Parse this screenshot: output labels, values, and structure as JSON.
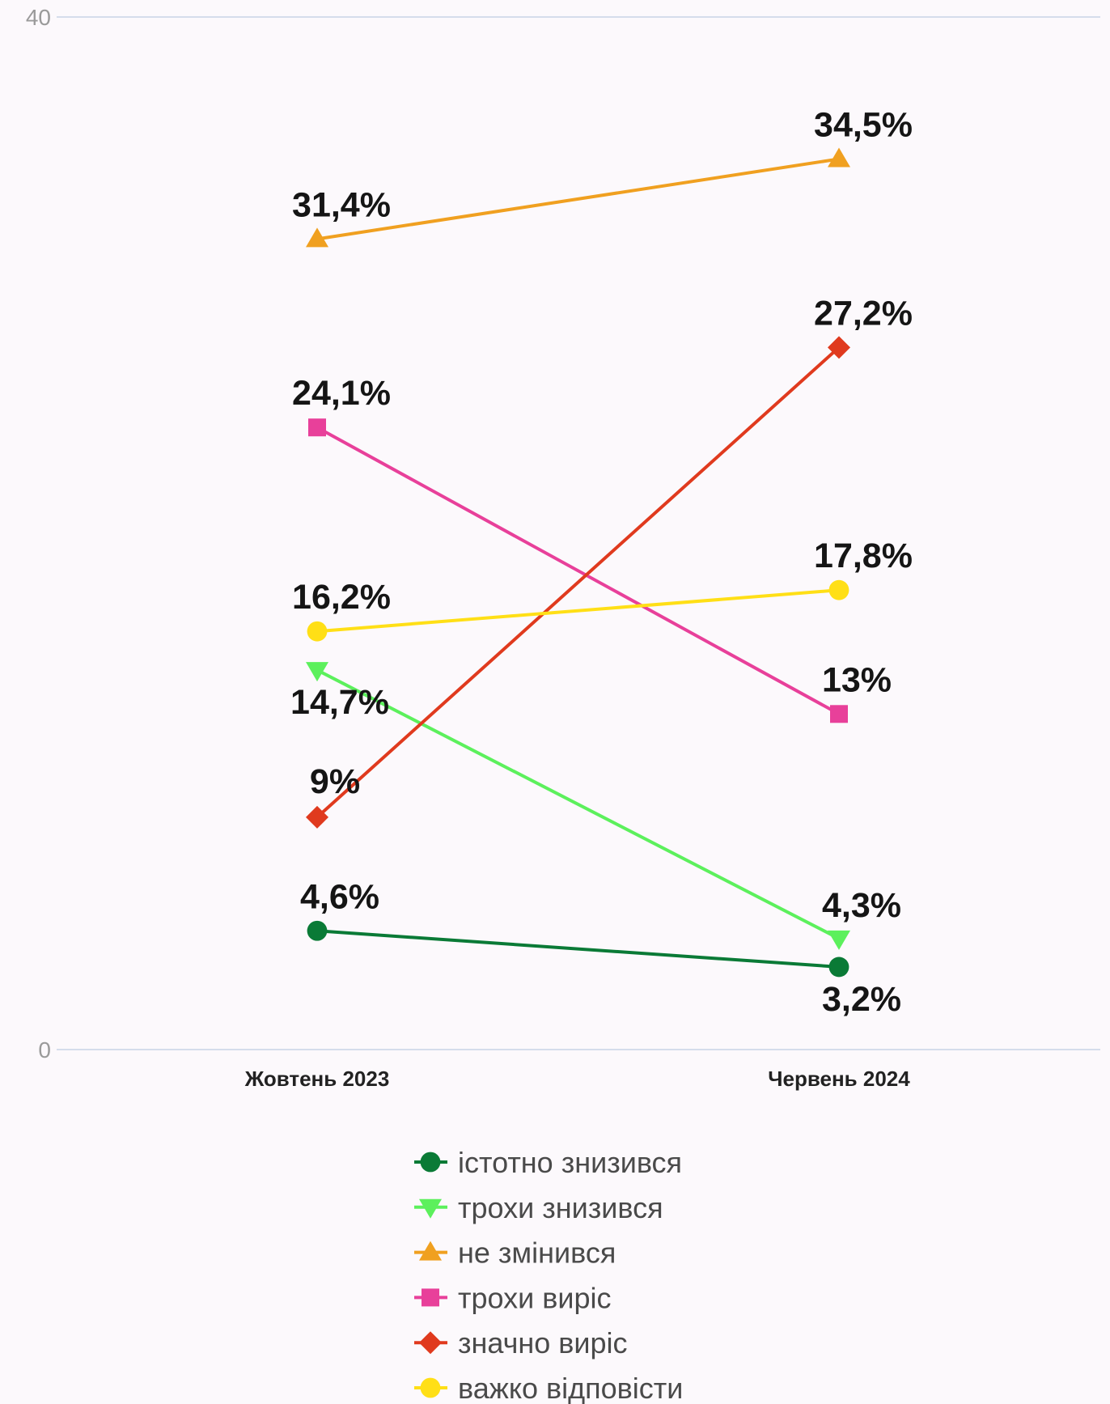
{
  "chart_data": {
    "type": "line",
    "categories": [
      "Жовтень 2023",
      "Червень 2024"
    ],
    "ylim": [
      0,
      40
    ],
    "yticks": [
      "0",
      "40"
    ],
    "grid": true,
    "legend_position": "bottom",
    "series": [
      {
        "name": "істотно знизився",
        "values": [
          4.6,
          3.2
        ],
        "labels": [
          "4,6%",
          "3,2%"
        ],
        "color": "#0a7a36",
        "marker": "circle"
      },
      {
        "name": "трохи знизився",
        "values": [
          14.7,
          4.3
        ],
        "labels": [
          "14,7%",
          "4,3%"
        ],
        "color": "#5cf05c",
        "marker": "triangle-down"
      },
      {
        "name": "не змінився",
        "values": [
          31.4,
          34.5
        ],
        "labels": [
          "31,4%",
          "34,5%"
        ],
        "color": "#f0a020",
        "marker": "triangle-up"
      },
      {
        "name": "трохи виріс",
        "values": [
          24.1,
          13
        ],
        "labels": [
          "24,1%",
          "13%"
        ],
        "color": "#e8409a",
        "marker": "square"
      },
      {
        "name": "значно виріс",
        "values": [
          9,
          27.2
        ],
        "labels": [
          "9%",
          "27,2%"
        ],
        "color": "#e03a1e",
        "marker": "diamond"
      },
      {
        "name": "важко відповісти",
        "values": [
          16.2,
          17.8
        ],
        "labels": [
          "16,2%",
          "17,8%"
        ],
        "color": "#ffdf16",
        "marker": "circle"
      }
    ]
  }
}
